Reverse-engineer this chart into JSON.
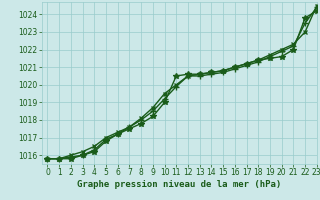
{
  "title": "Graphe pression niveau de la mer (hPa)",
  "background_color": "#cce8e8",
  "grid_color": "#99cccc",
  "line_color": "#1a5c1a",
  "xlim": [
    -0.5,
    23
  ],
  "ylim": [
    1015.5,
    1024.7
  ],
  "xticks": [
    0,
    1,
    2,
    3,
    4,
    5,
    6,
    7,
    8,
    9,
    10,
    11,
    12,
    13,
    14,
    15,
    16,
    17,
    18,
    19,
    20,
    21,
    22,
    23
  ],
  "yticks": [
    1016,
    1017,
    1018,
    1019,
    1020,
    1021,
    1022,
    1023,
    1024
  ],
  "series": [
    [
      1015.8,
      1015.8,
      1015.8,
      1016.0,
      1016.2,
      1016.8,
      1017.2,
      1017.5,
      1017.8,
      1018.2,
      1019.0,
      1020.5,
      1020.6,
      1020.6,
      1020.7,
      1020.8,
      1021.0,
      1021.2,
      1021.4,
      1021.5,
      1021.6,
      1022.0,
      1023.8,
      1024.2
    ],
    [
      1015.8,
      1015.8,
      1015.9,
      1016.0,
      1016.3,
      1016.9,
      1017.2,
      1017.6,
      1018.0,
      1018.5,
      1019.2,
      1019.9,
      1020.5,
      1020.5,
      1020.6,
      1020.7,
      1020.9,
      1021.1,
      1021.3,
      1021.6,
      1021.9,
      1022.2,
      1023.5,
      1024.4
    ],
    [
      1015.8,
      1015.8,
      1016.0,
      1016.2,
      1016.5,
      1017.0,
      1017.3,
      1017.6,
      1018.1,
      1018.7,
      1019.5,
      1020.0,
      1020.5,
      1020.6,
      1020.7,
      1020.8,
      1021.0,
      1021.2,
      1021.4,
      1021.7,
      1022.0,
      1022.3,
      1023.0,
      1024.5
    ]
  ],
  "title_fontsize": 6.5,
  "tick_fontsize": 5.5
}
